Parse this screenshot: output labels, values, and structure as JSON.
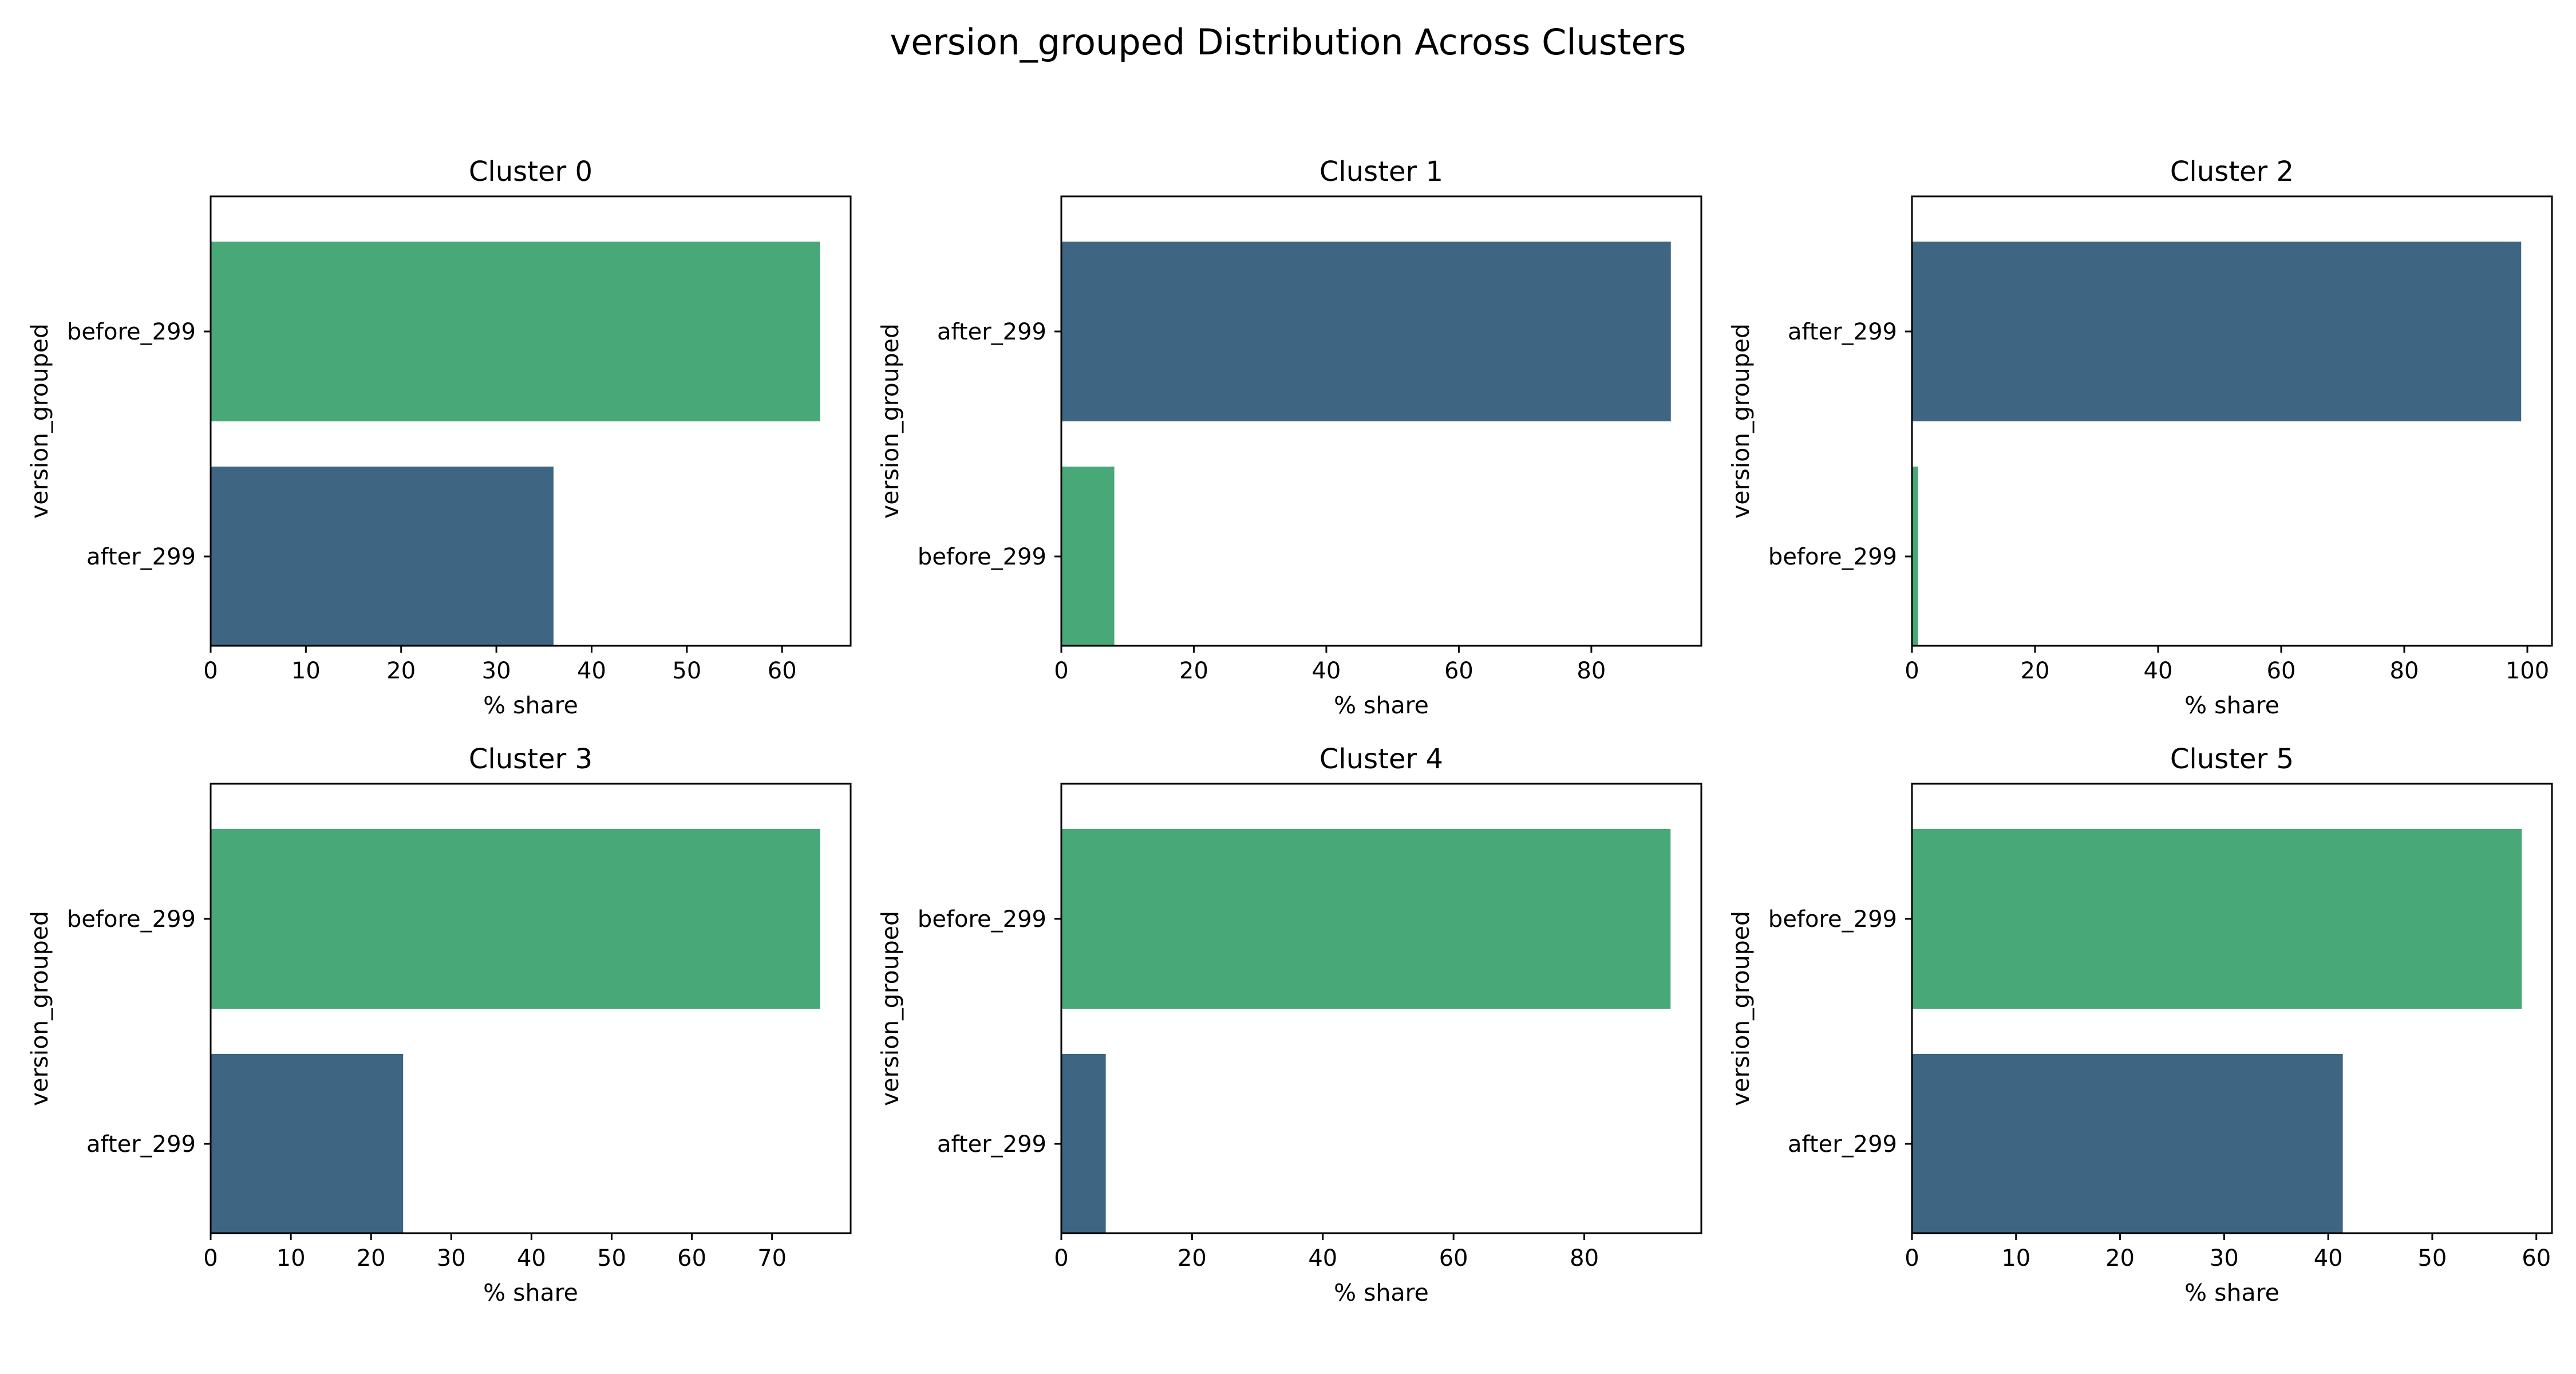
{
  "figure": {
    "title": "version_grouped Distribution Across Clusters"
  },
  "colors": {
    "before_299": "#48a878",
    "after_299": "#3e6582"
  },
  "chart_data": [
    {
      "type": "bar",
      "orientation": "horizontal",
      "title": "Cluster 0",
      "xlabel": "% share",
      "ylabel": "version_grouped",
      "categories": [
        "before_299",
        "after_299"
      ],
      "values": [
        64.0,
        36.0
      ],
      "xlim": [
        0,
        67.2
      ],
      "xticks": [
        0,
        10,
        20,
        30,
        40,
        50,
        60
      ]
    },
    {
      "type": "bar",
      "orientation": "horizontal",
      "title": "Cluster 1",
      "xlabel": "% share",
      "ylabel": "version_grouped",
      "categories": [
        "after_299",
        "before_299"
      ],
      "values": [
        92.0,
        8.0
      ],
      "xlim": [
        0,
        96.6
      ],
      "xticks": [
        0,
        20,
        40,
        60,
        80
      ]
    },
    {
      "type": "bar",
      "orientation": "horizontal",
      "title": "Cluster 2",
      "xlabel": "% share",
      "ylabel": "version_grouped",
      "categories": [
        "after_299",
        "before_299"
      ],
      "values": [
        99.0,
        1.0
      ],
      "xlim": [
        0,
        104.0
      ],
      "xticks": [
        0,
        20,
        40,
        60,
        80,
        100
      ]
    },
    {
      "type": "bar",
      "orientation": "horizontal",
      "title": "Cluster 3",
      "xlabel": "% share",
      "ylabel": "version_grouped",
      "categories": [
        "before_299",
        "after_299"
      ],
      "values": [
        76.0,
        24.0
      ],
      "xlim": [
        0,
        79.8
      ],
      "xticks": [
        0,
        10,
        20,
        30,
        40,
        50,
        60,
        70
      ]
    },
    {
      "type": "bar",
      "orientation": "horizontal",
      "title": "Cluster 4",
      "xlabel": "% share",
      "ylabel": "version_grouped",
      "categories": [
        "before_299",
        "after_299"
      ],
      "values": [
        93.2,
        6.8
      ],
      "xlim": [
        0,
        97.9
      ],
      "xticks": [
        0,
        20,
        40,
        60,
        80
      ]
    },
    {
      "type": "bar",
      "orientation": "horizontal",
      "title": "Cluster 5",
      "xlabel": "% share",
      "ylabel": "version_grouped",
      "categories": [
        "before_299",
        "after_299"
      ],
      "values": [
        58.6,
        41.4
      ],
      "xlim": [
        0,
        61.5
      ],
      "xticks": [
        0,
        10,
        20,
        30,
        40,
        50,
        60
      ]
    }
  ]
}
